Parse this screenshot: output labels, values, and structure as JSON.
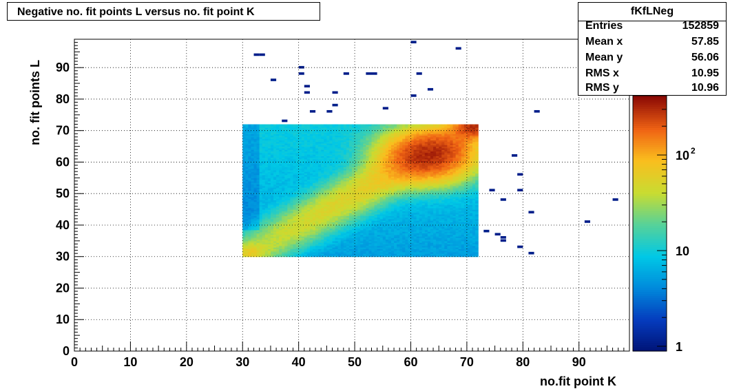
{
  "title": "Negative no. fit points L versus no. fit point K",
  "stats": {
    "name": "fKfLNeg",
    "rows": [
      {
        "label": "Entries",
        "value": "152859"
      },
      {
        "label": "Mean x",
        "value": "57.85"
      },
      {
        "label": "Mean y",
        "value": "56.06"
      },
      {
        "label": "RMS x",
        "value": "10.95"
      },
      {
        "label": "RMS y",
        "value": "10.96"
      }
    ]
  },
  "chart_data": {
    "type": "heatmap",
    "title": "Negative no. fit points L versus no. fit point K",
    "xlabel": "no.fit point K",
    "ylabel": "no. fit points  L",
    "xlim": [
      0,
      99
    ],
    "ylim": [
      0,
      99
    ],
    "x_ticks": [
      "0",
      "10",
      "20",
      "30",
      "40",
      "50",
      "60",
      "70",
      "80",
      "90"
    ],
    "y_ticks": [
      "0",
      "10",
      "20",
      "30",
      "40",
      "50",
      "60",
      "70",
      "80",
      "90"
    ],
    "grid": true,
    "z_scale": "log",
    "z_range": [
      1,
      500
    ],
    "z_ticks": [
      "1",
      "10",
      "10^2"
    ],
    "dense_region": {
      "x_range": [
        30,
        72
      ],
      "y_range": [
        30,
        72
      ],
      "description_values": {
        "min_count": 5,
        "max_count": 400,
        "peak_xy": [
          63,
          62
        ]
      }
    },
    "isolated_bins": [
      [
        32,
        94
      ],
      [
        33,
        94
      ],
      [
        40,
        90
      ],
      [
        35,
        86
      ],
      [
        40,
        88
      ],
      [
        41,
        84
      ],
      [
        41,
        82
      ],
      [
        48,
        88
      ],
      [
        52,
        88
      ],
      [
        53,
        88
      ],
      [
        46,
        82
      ],
      [
        60,
        98
      ],
      [
        61,
        88
      ],
      [
        63,
        83
      ],
      [
        60,
        81
      ],
      [
        68,
        96
      ],
      [
        46,
        78
      ],
      [
        55,
        77
      ],
      [
        42,
        76
      ],
      [
        45,
        76
      ],
      [
        37,
        73
      ],
      [
        82,
        76
      ],
      [
        78,
        62
      ],
      [
        79,
        56
      ],
      [
        74,
        51
      ],
      [
        79,
        51
      ],
      [
        76,
        48
      ],
      [
        81,
        44
      ],
      [
        96,
        48
      ],
      [
        91,
        41
      ],
      [
        73,
        38
      ],
      [
        75,
        37
      ],
      [
        76,
        36
      ],
      [
        76,
        35
      ],
      [
        79,
        33
      ],
      [
        81,
        31
      ]
    ]
  }
}
